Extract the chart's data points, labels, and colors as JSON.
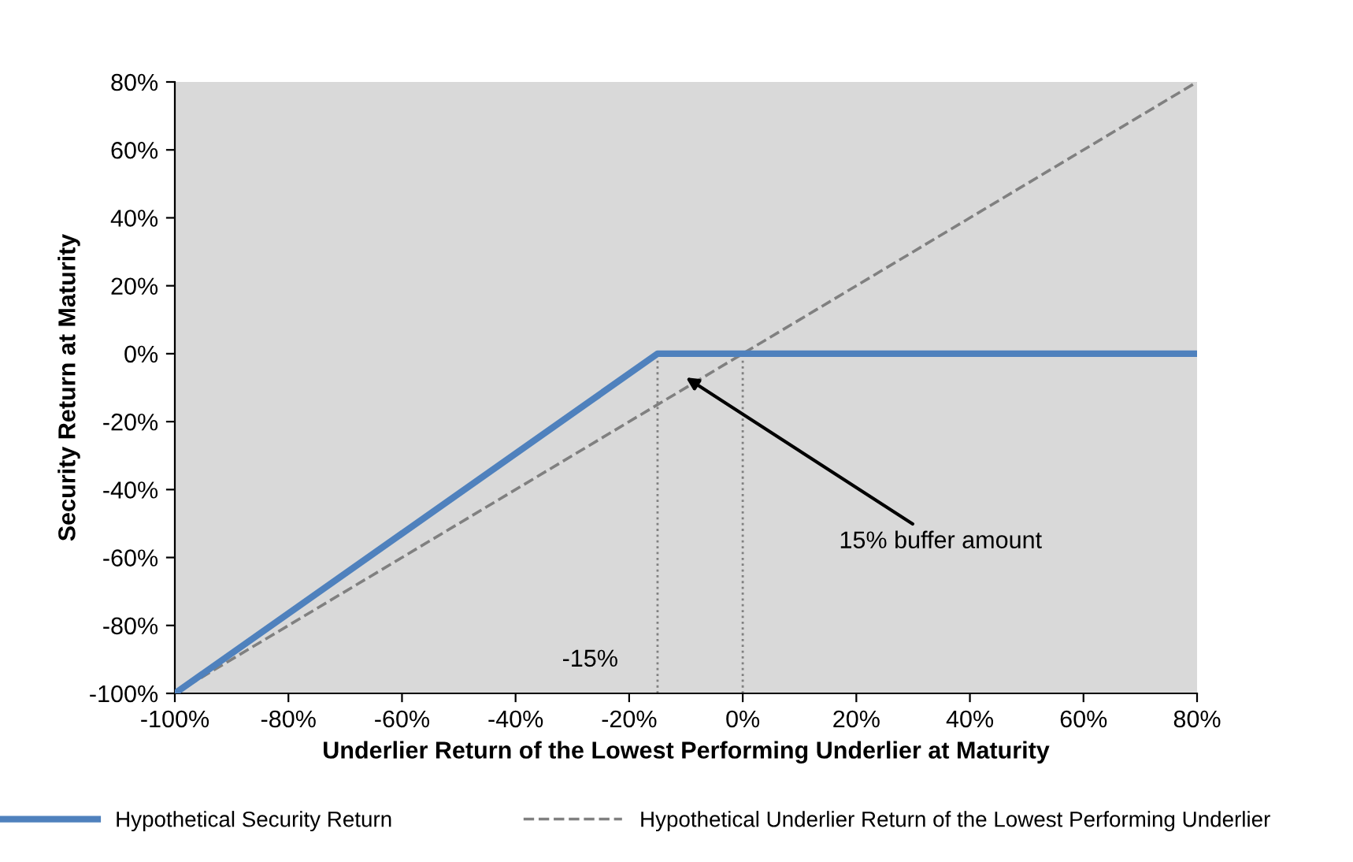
{
  "chart_data": {
    "type": "line",
    "xlabel": "Underlier Return of the Lowest Performing Underlier at Maturity",
    "ylabel": "Security Return at Maturity",
    "series": [
      {
        "name": "Hypothetical Security Return",
        "color": "#4f81bd",
        "x": [
          -100,
          -15,
          80
        ],
        "values": [
          -100,
          0,
          0
        ],
        "line_style": "solid"
      },
      {
        "name": "Hypothetical Underlier Return of the Lowest Performing Underlier",
        "color": "#808080",
        "x": [
          -100,
          80
        ],
        "values": [
          -100,
          80
        ],
        "line_style": "dashed"
      }
    ],
    "xlim": [
      -100,
      80
    ],
    "ylim": [
      -100,
      80
    ],
    "xticks": [
      {
        "value": -100,
        "label": "-100%"
      },
      {
        "value": -80,
        "label": "-80%"
      },
      {
        "value": -60,
        "label": "-60%"
      },
      {
        "value": -40,
        "label": "-40%"
      },
      {
        "value": -20,
        "label": "-20%"
      },
      {
        "value": 0,
        "label": "0%"
      },
      {
        "value": 20,
        "label": "20%"
      },
      {
        "value": 40,
        "label": "40%"
      },
      {
        "value": 60,
        "label": "60%"
      },
      {
        "value": 80,
        "label": "80%"
      }
    ],
    "yticks": [
      {
        "value": -100,
        "label": "-100%"
      },
      {
        "value": -80,
        "label": "-80%"
      },
      {
        "value": -60,
        "label": "-60%"
      },
      {
        "value": -40,
        "label": "-40%"
      },
      {
        "value": -20,
        "label": "-20%"
      },
      {
        "value": 0,
        "label": "0%"
      },
      {
        "value": 20,
        "label": "20%"
      },
      {
        "value": 40,
        "label": "40%"
      },
      {
        "value": 60,
        "label": "60%"
      },
      {
        "value": 80,
        "label": "80%"
      }
    ],
    "ref_lines": [
      {
        "axis": "x",
        "value": -15,
        "label": "-15%",
        "color": "#808080",
        "line_style": "dotted"
      },
      {
        "axis": "x",
        "value": 0,
        "label": null,
        "color": "#808080",
        "line_style": "dotted"
      }
    ],
    "annotations": [
      {
        "text": "15% buffer amount",
        "x": -10,
        "y": -7
      }
    ],
    "grid": false,
    "legend": "bottom",
    "marker": "none"
  }
}
